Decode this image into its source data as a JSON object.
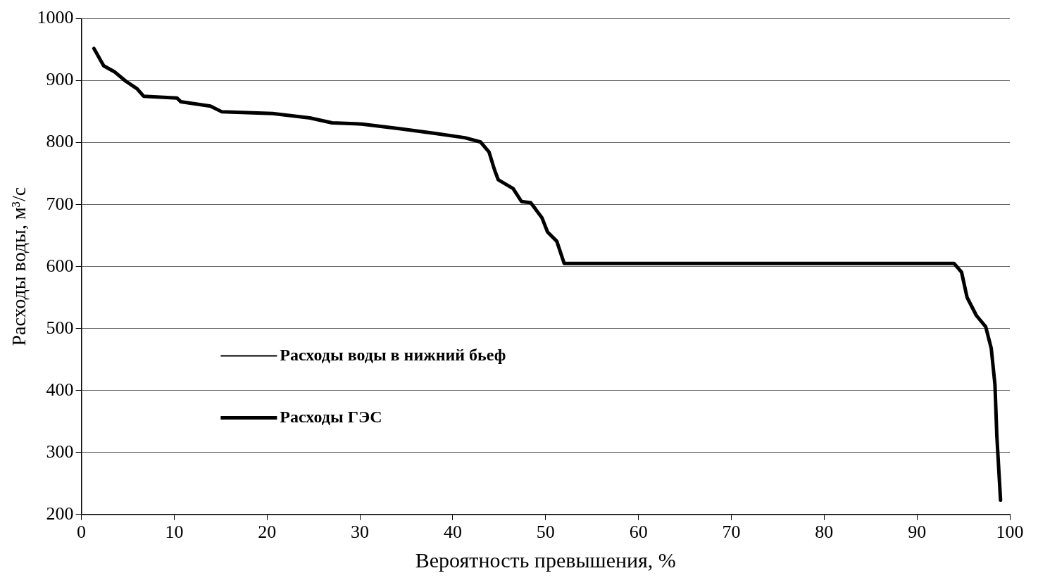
{
  "chart_data": {
    "type": "line",
    "xlabel": "Вероятность превышения, %",
    "ylabel": "Расходы воды, м³/с",
    "xlim": [
      0,
      100
    ],
    "xticks": [
      0,
      10,
      20,
      30,
      40,
      50,
      60,
      70,
      80,
      90,
      100
    ],
    "ylim": [
      200,
      1000
    ],
    "yticks": [
      200,
      300,
      400,
      500,
      600,
      700,
      800,
      900,
      1000
    ],
    "grid": "y",
    "legend": "left",
    "line_style": "solid",
    "marker": "none",
    "x": [
      1.35,
      2.4,
      3.6,
      4.8,
      6.0,
      6.7,
      10.3,
      10.7,
      13.9,
      15.1,
      20.6,
      24.6,
      27.0,
      30.2,
      34.1,
      38.1,
      41.3,
      43.0,
      43.9,
      44.5,
      44.9,
      46.5,
      47.4,
      48.4,
      49.6,
      50.2,
      51.2,
      52.0,
      94.0,
      94.8,
      95.4,
      96.4,
      97.4,
      98.0,
      98.4,
      98.6,
      99.0
    ],
    "series": [
      {
        "name": "Расходы воды в нижний бьеф",
        "color": "#000000",
        "values": [
          null,
          null,
          null,
          null,
          null,
          null,
          null,
          null,
          null,
          null,
          null,
          null,
          null,
          null,
          null,
          null,
          null,
          null,
          null,
          null,
          null,
          null,
          null,
          null,
          null,
          null,
          null,
          null,
          null,
          null,
          null,
          null,
          null,
          null,
          null,
          null,
          null
        ]
      },
      {
        "name": "Расходы ГЭС",
        "color": "#000000",
        "values": [
          952,
          924,
          914,
          899,
          887,
          875,
          872,
          866,
          859,
          850,
          847,
          840,
          832,
          830,
          823,
          815,
          808,
          801,
          785,
          756,
          740,
          726,
          705,
          703,
          679,
          656,
          641,
          605,
          605,
          591,
          550,
          521,
          503,
          468,
          409,
          327,
          223
        ]
      }
    ]
  }
}
